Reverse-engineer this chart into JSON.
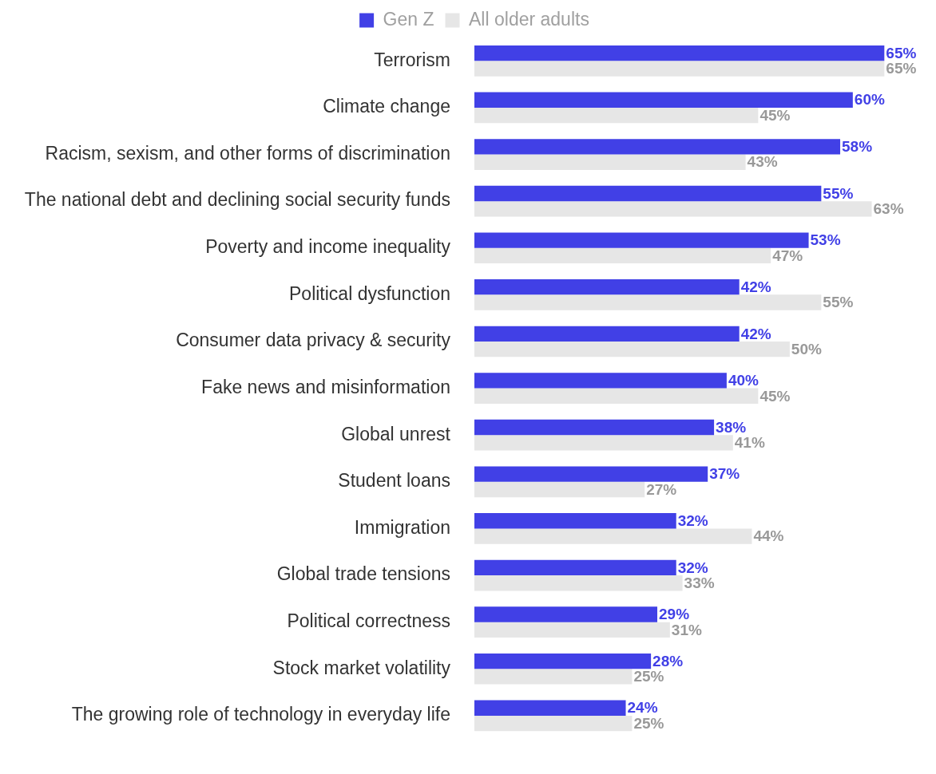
{
  "chart_data": {
    "type": "bar",
    "orientation": "horizontal",
    "legend": "top",
    "categories": [
      "Terrorism",
      "Climate change",
      "Racism, sexism, and other forms of discrimination",
      "The national debt and declining social security funds",
      "Poverty and income inequality",
      "Political dysfunction",
      "Consumer data privacy & security",
      "Fake news and misinformation",
      "Global unrest",
      "Student loans",
      "Immigration",
      "Global trade tensions",
      "Political correctness",
      "Stock market volatility",
      "The growing role of technology in everyday life"
    ],
    "series": [
      {
        "name": "Gen Z",
        "color": "#4140e6",
        "values": [
          65,
          60,
          58,
          55,
          53,
          42,
          42,
          40,
          38,
          37,
          32,
          32,
          29,
          28,
          24
        ],
        "value_labels": [
          "65%",
          "60%",
          "58%",
          "55%",
          "53%",
          "42%",
          "42%",
          "40%",
          "38%",
          "37%",
          "32%",
          "32%",
          "29%",
          "28%",
          "24%"
        ]
      },
      {
        "name": "All older adults",
        "color": "#e6e6e6",
        "values": [
          65,
          45,
          43,
          63,
          47,
          55,
          50,
          45,
          41,
          27,
          44,
          33,
          31,
          25,
          25
        ],
        "value_labels": [
          "65%",
          "45%",
          "43%",
          "63%",
          "47%",
          "55%",
          "50%",
          "45%",
          "41%",
          "27%",
          "44%",
          "33%",
          "31%",
          "25%",
          "25%"
        ]
      }
    ]
  }
}
